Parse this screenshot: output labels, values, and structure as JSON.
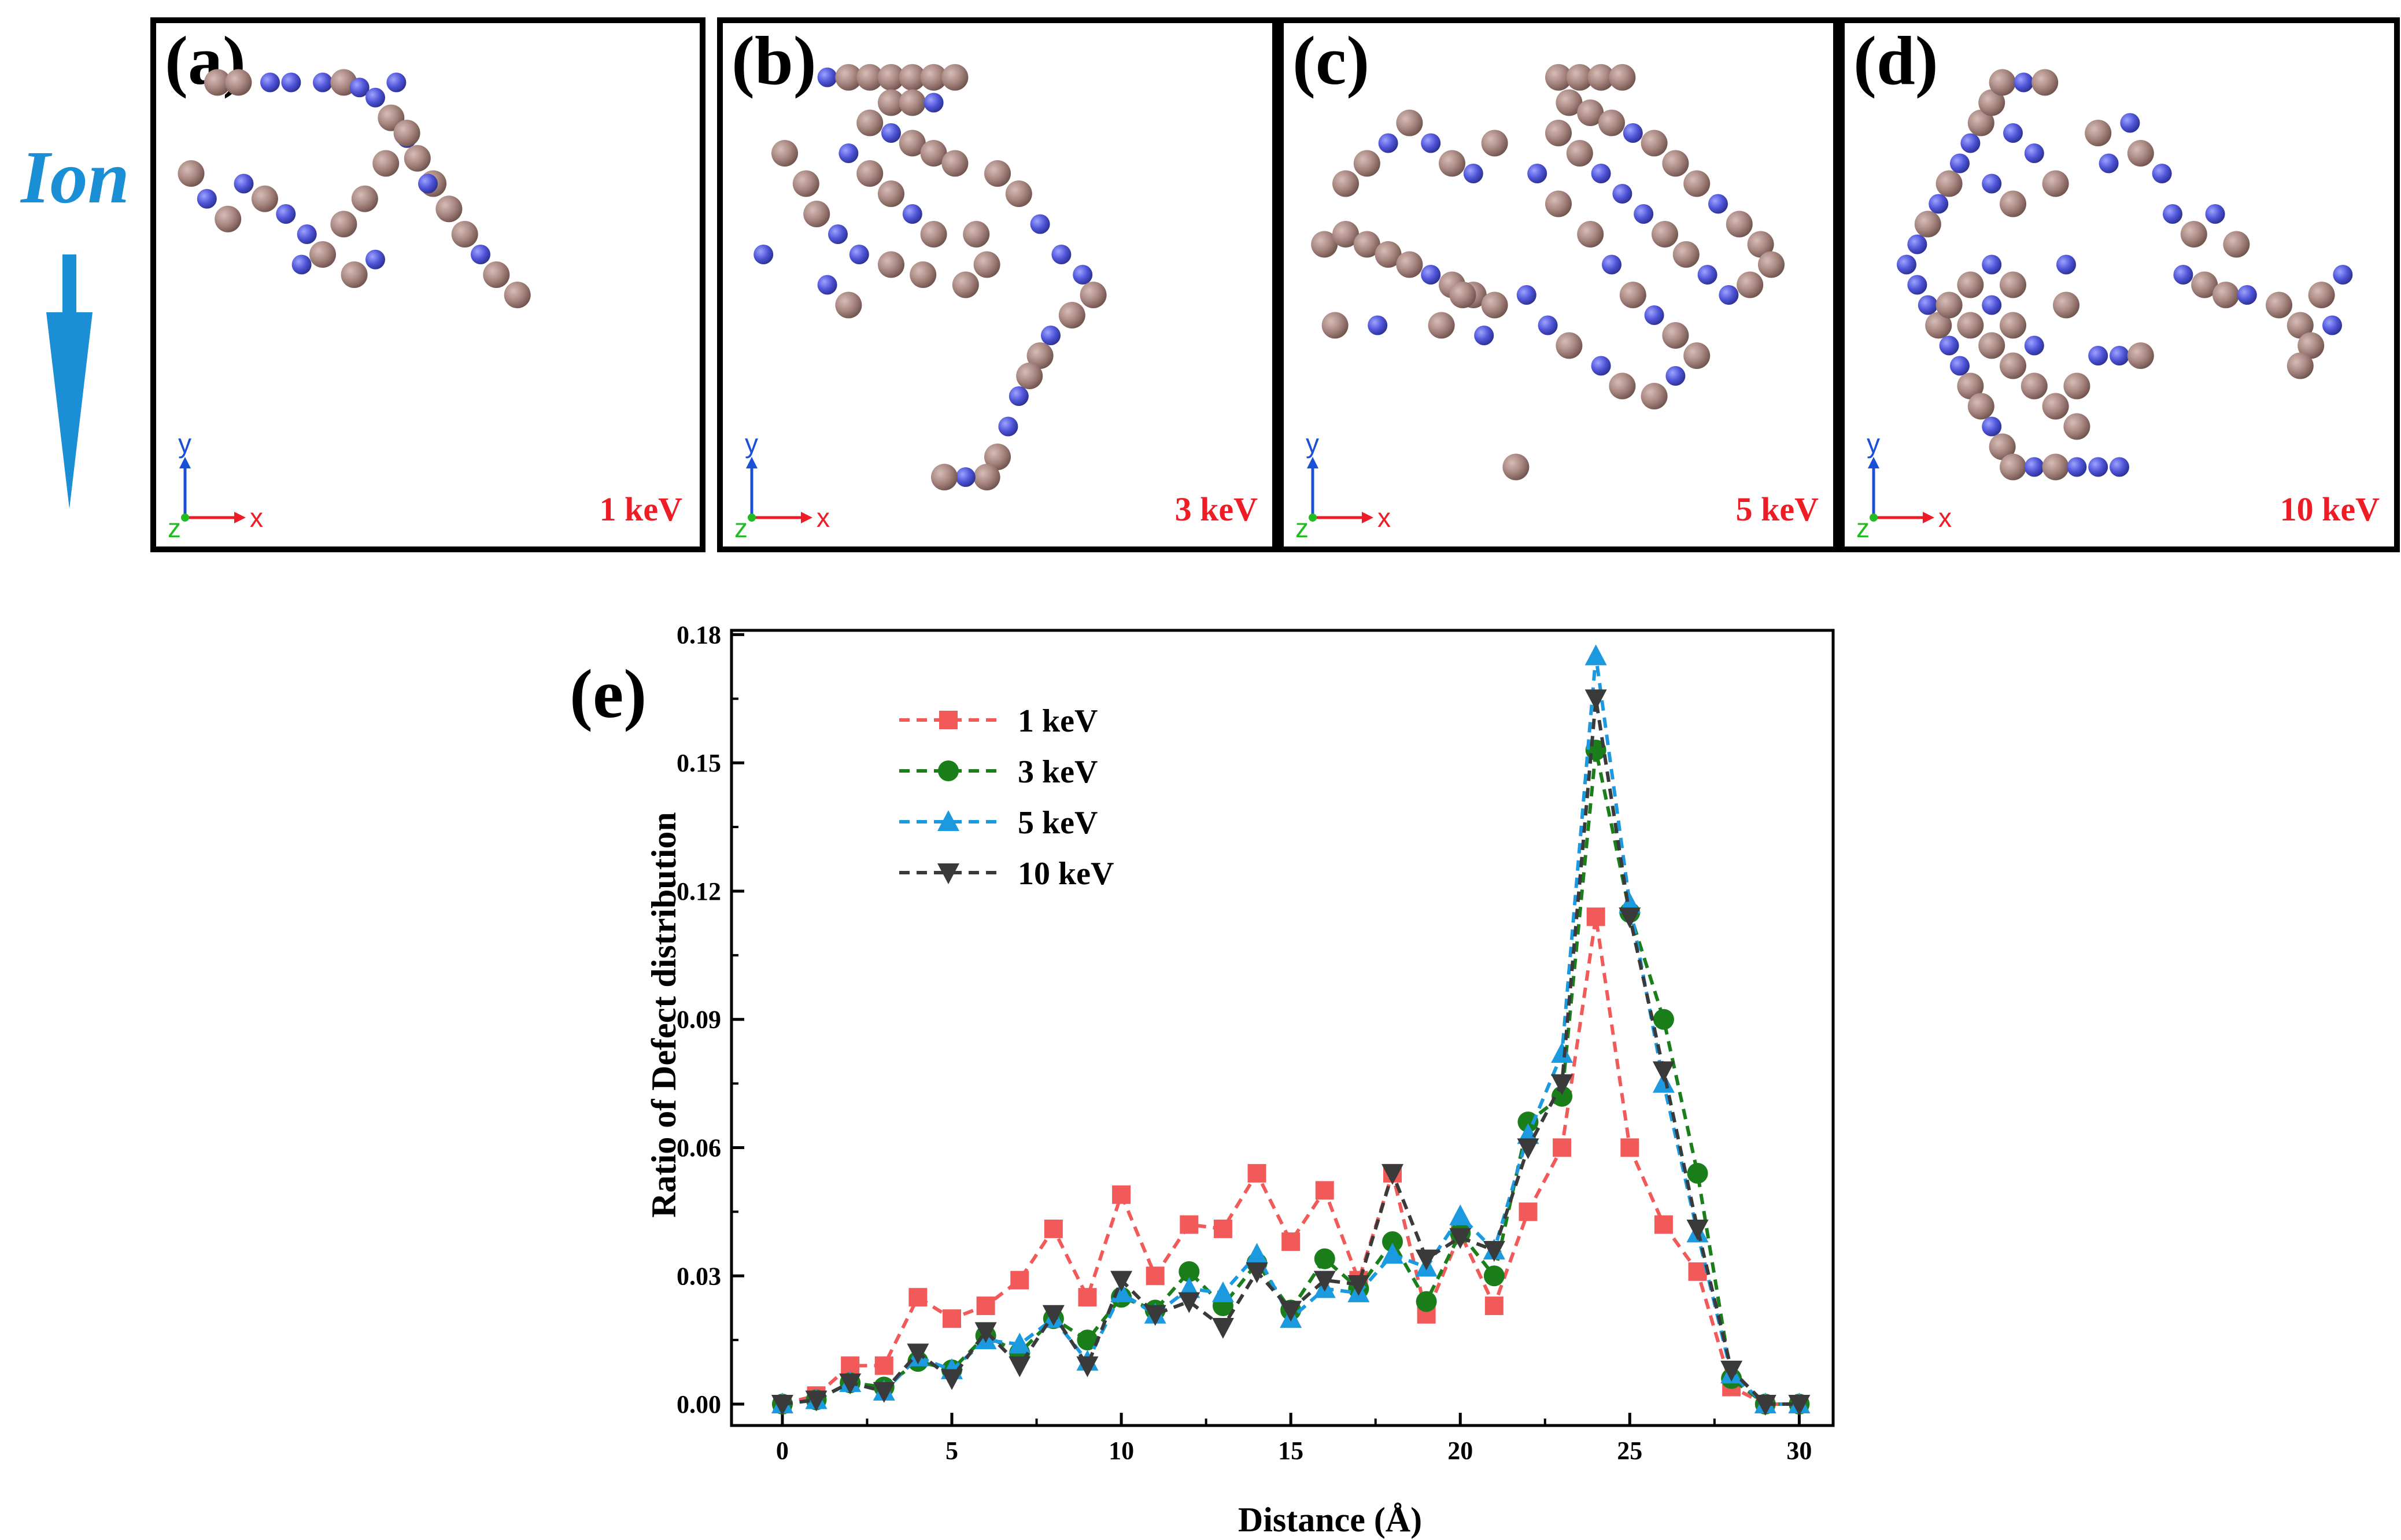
{
  "ion_label": "Ion",
  "colors": {
    "ion_arrow": "#1a8fd6",
    "vacancy_atom": "#a88680",
    "interstitial_atom": "#4f55d8",
    "energy_tag": "#ee1c24",
    "axis_x": "#ee1c24",
    "axis_y": "#1a4fd8",
    "axis_z": "#22bb22"
  },
  "panels": [
    {
      "label": "(a)",
      "energy": "1 keV"
    },
    {
      "label": "(b)",
      "energy": "3 keV"
    },
    {
      "label": "(c)",
      "energy": "5 keV"
    },
    {
      "label": "(d)",
      "energy": "10 keV"
    }
  ],
  "mini_axes": {
    "x": "x",
    "y": "y",
    "z": "z"
  },
  "chart_data": {
    "type": "line",
    "panel_label": "(e)",
    "xlabel": "Distance (Å)",
    "ylabel": "Ratio of Defect distribution",
    "xlim": [
      -1.5,
      31
    ],
    "ylim": [
      -0.005,
      0.181
    ],
    "xticks": [
      0,
      5,
      10,
      15,
      20,
      25,
      30
    ],
    "yticks": [
      0.0,
      0.03,
      0.06,
      0.09,
      0.12,
      0.15,
      0.18
    ],
    "ytick_labels": [
      "0.00",
      "0.03",
      "0.06",
      "0.09",
      "0.12",
      "0.15",
      "0.18"
    ],
    "legend_position": "top-left",
    "x": [
      0,
      1,
      2,
      3,
      4,
      5,
      6,
      7,
      8,
      9,
      10,
      11,
      12,
      13,
      14,
      15,
      16,
      17,
      18,
      19,
      20,
      21,
      22,
      23,
      24,
      25,
      26,
      27,
      28,
      29,
      30
    ],
    "series": [
      {
        "name": "1 keV",
        "marker": "square",
        "color": "#f25a5a",
        "values": [
          0,
          0.002,
          0.009,
          0.009,
          0.025,
          0.02,
          0.023,
          0.029,
          0.041,
          0.025,
          0.049,
          0.03,
          0.042,
          0.041,
          0.054,
          0.038,
          0.05,
          0.029,
          0.054,
          0.021,
          0.04,
          0.023,
          0.045,
          0.06,
          0.114,
          0.06,
          0.042,
          0.031,
          0.004,
          0,
          0
        ]
      },
      {
        "name": "3 keV",
        "marker": "circle",
        "color": "#1a7f1a",
        "values": [
          0,
          0.001,
          0.005,
          0.004,
          0.01,
          0.008,
          0.016,
          0.012,
          0.02,
          0.015,
          0.025,
          0.022,
          0.031,
          0.023,
          0.033,
          0.022,
          0.034,
          0.027,
          0.038,
          0.024,
          0.04,
          0.03,
          0.066,
          0.072,
          0.153,
          0.115,
          0.09,
          0.054,
          0.006,
          0,
          0
        ]
      },
      {
        "name": "5 keV",
        "marker": "triangle-up",
        "color": "#1b9ae0",
        "values": [
          0,
          0.001,
          0.005,
          0.003,
          0.011,
          0.008,
          0.015,
          0.014,
          0.02,
          0.01,
          0.026,
          0.021,
          0.027,
          0.026,
          0.035,
          0.02,
          0.027,
          0.026,
          0.035,
          0.032,
          0.044,
          0.036,
          0.063,
          0.082,
          0.175,
          0.117,
          0.075,
          0.04,
          0.007,
          0,
          0
        ]
      },
      {
        "name": "10 keV",
        "marker": "triangle-down",
        "color": "#3a3a3a",
        "values": [
          0,
          0.001,
          0.005,
          0.003,
          0.012,
          0.006,
          0.017,
          0.009,
          0.021,
          0.009,
          0.029,
          0.021,
          0.024,
          0.018,
          0.031,
          0.022,
          0.029,
          0.028,
          0.054,
          0.034,
          0.039,
          0.036,
          0.06,
          0.075,
          0.165,
          0.114,
          0.078,
          0.041,
          0.008,
          0,
          0
        ]
      }
    ]
  }
}
